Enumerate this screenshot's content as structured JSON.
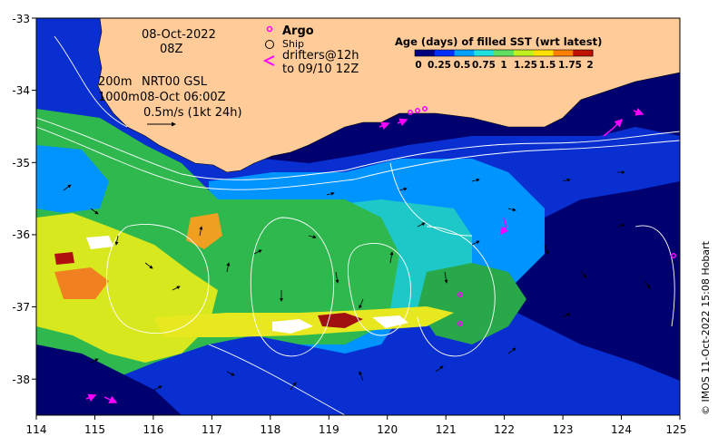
{
  "map": {
    "lon_range": [
      114,
      125
    ],
    "lat_range": [
      -38.5,
      -33
    ],
    "x_ticks": [
      "114",
      "115",
      "116",
      "117",
      "118",
      "119",
      "120",
      "121",
      "122",
      "123",
      "124",
      "125"
    ],
    "y_ticks": [
      "-33",
      "-34",
      "-35",
      "-36",
      "-37",
      "-38"
    ],
    "land_color": "#FFCC99",
    "open_ocean_color": "#00006E"
  },
  "annotations": {
    "date": "08-Oct-2022",
    "hour": "08Z",
    "contours_200m": "200m",
    "contours_1000m": "1000m",
    "product": "NRT00 GSL",
    "product_time": "08-Oct 06:00Z",
    "arrow_scale": "0.5m/s (1kt 24h)"
  },
  "legend": {
    "argo": "Argo",
    "ship": "Ship",
    "drifters_line1": "drifters@12h",
    "drifters_line2": "to 09/10 12Z"
  },
  "colorbar": {
    "title": "Age (days) of filled SST (wrt latest)",
    "labels": [
      "0",
      "0.25",
      "0.5",
      "0.75",
      "1",
      "1.25",
      "1.5",
      "1.75",
      "2"
    ],
    "colors": [
      "#00007F",
      "#0030FF",
      "#00A0FF",
      "#20E0E0",
      "#60E060",
      "#C0F020",
      "#FFE000",
      "#FF8000",
      "#C01000"
    ]
  },
  "credit": "© IMOS 11-Oct-2022 15:08 Hobart",
  "colors": {
    "argo_marker": "#FF00FF",
    "drifter": "#FF00FF",
    "contour": "#FFFFFF",
    "arrow": "#000000"
  }
}
